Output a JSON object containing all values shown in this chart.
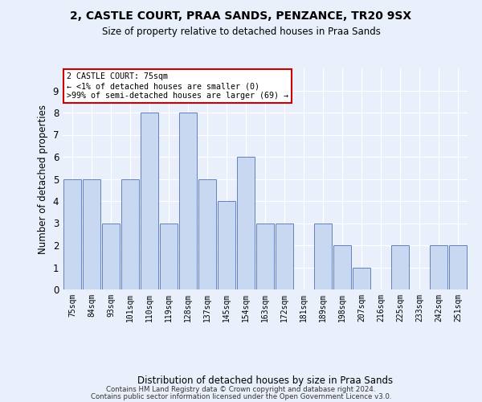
{
  "title1": "2, CASTLE COURT, PRAA SANDS, PENZANCE, TR20 9SX",
  "title2": "Size of property relative to detached houses in Praa Sands",
  "xlabel": "Distribution of detached houses by size in Praa Sands",
  "ylabel": "Number of detached properties",
  "categories": [
    "75sqm",
    "84sqm",
    "93sqm",
    "101sqm",
    "110sqm",
    "119sqm",
    "128sqm",
    "137sqm",
    "145sqm",
    "154sqm",
    "163sqm",
    "172sqm",
    "181sqm",
    "189sqm",
    "198sqm",
    "207sqm",
    "216sqm",
    "225sqm",
    "233sqm",
    "242sqm",
    "251sqm"
  ],
  "values": [
    5,
    5,
    3,
    5,
    8,
    3,
    8,
    5,
    4,
    6,
    3,
    3,
    0,
    3,
    2,
    1,
    0,
    2,
    0,
    2,
    2
  ],
  "bar_color": "#c8d8f0",
  "bar_edge_color": "#6080c0",
  "ylim": [
    0,
    10
  ],
  "yticks": [
    0,
    1,
    2,
    3,
    4,
    5,
    6,
    7,
    8,
    9,
    10
  ],
  "annotation_line1": "2 CASTLE COURT: 75sqm",
  "annotation_line2": "← <1% of detached houses are smaller (0)",
  "annotation_line3": ">99% of semi-detached houses are larger (69) →",
  "annotation_box_color": "#ffffff",
  "annotation_box_edge_color": "#cc0000",
  "footer1": "Contains HM Land Registry data © Crown copyright and database right 2024.",
  "footer2": "Contains public sector information licensed under the Open Government Licence v3.0.",
  "background_color": "#eaf0fb",
  "grid_color": "#ffffff"
}
